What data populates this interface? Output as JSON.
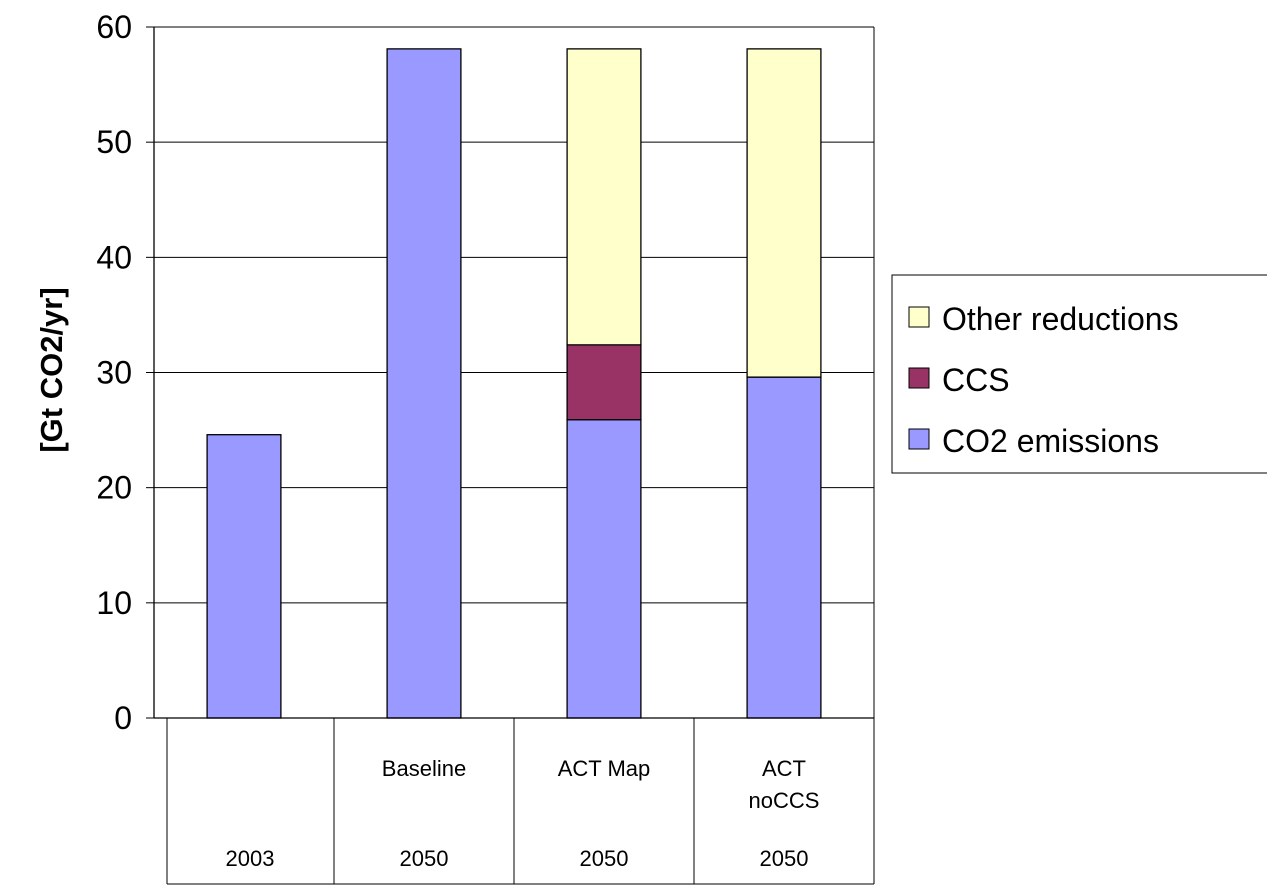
{
  "chart_data": {
    "type": "bar",
    "stacked": true,
    "categories": [
      {
        "label": "",
        "group": "2003"
      },
      {
        "label": "Baseline",
        "group": "2050"
      },
      {
        "label": "ACT Map",
        "group": "2050"
      },
      {
        "label": "ACT\nnoCCS",
        "group": "2050"
      }
    ],
    "series": [
      {
        "name": "CO2 emissions",
        "color": "#9999FF",
        "values": [
          24.6,
          58.1,
          25.9,
          29.6
        ]
      },
      {
        "name": "CCS",
        "color": "#993366",
        "values": [
          0,
          0,
          6.5,
          0
        ]
      },
      {
        "name": "Other reductions",
        "color": "#FFFFCC",
        "values": [
          0,
          0,
          25.7,
          28.5
        ]
      }
    ],
    "ylabel": "[Gt CO2/yr]",
    "ylim": [
      0,
      60
    ],
    "yticks": [
      0,
      10,
      20,
      30,
      40,
      50,
      60
    ],
    "grid": true,
    "legend_position": "right",
    "legend_order": [
      "Other reductions",
      "CCS",
      "CO2 emissions"
    ]
  }
}
